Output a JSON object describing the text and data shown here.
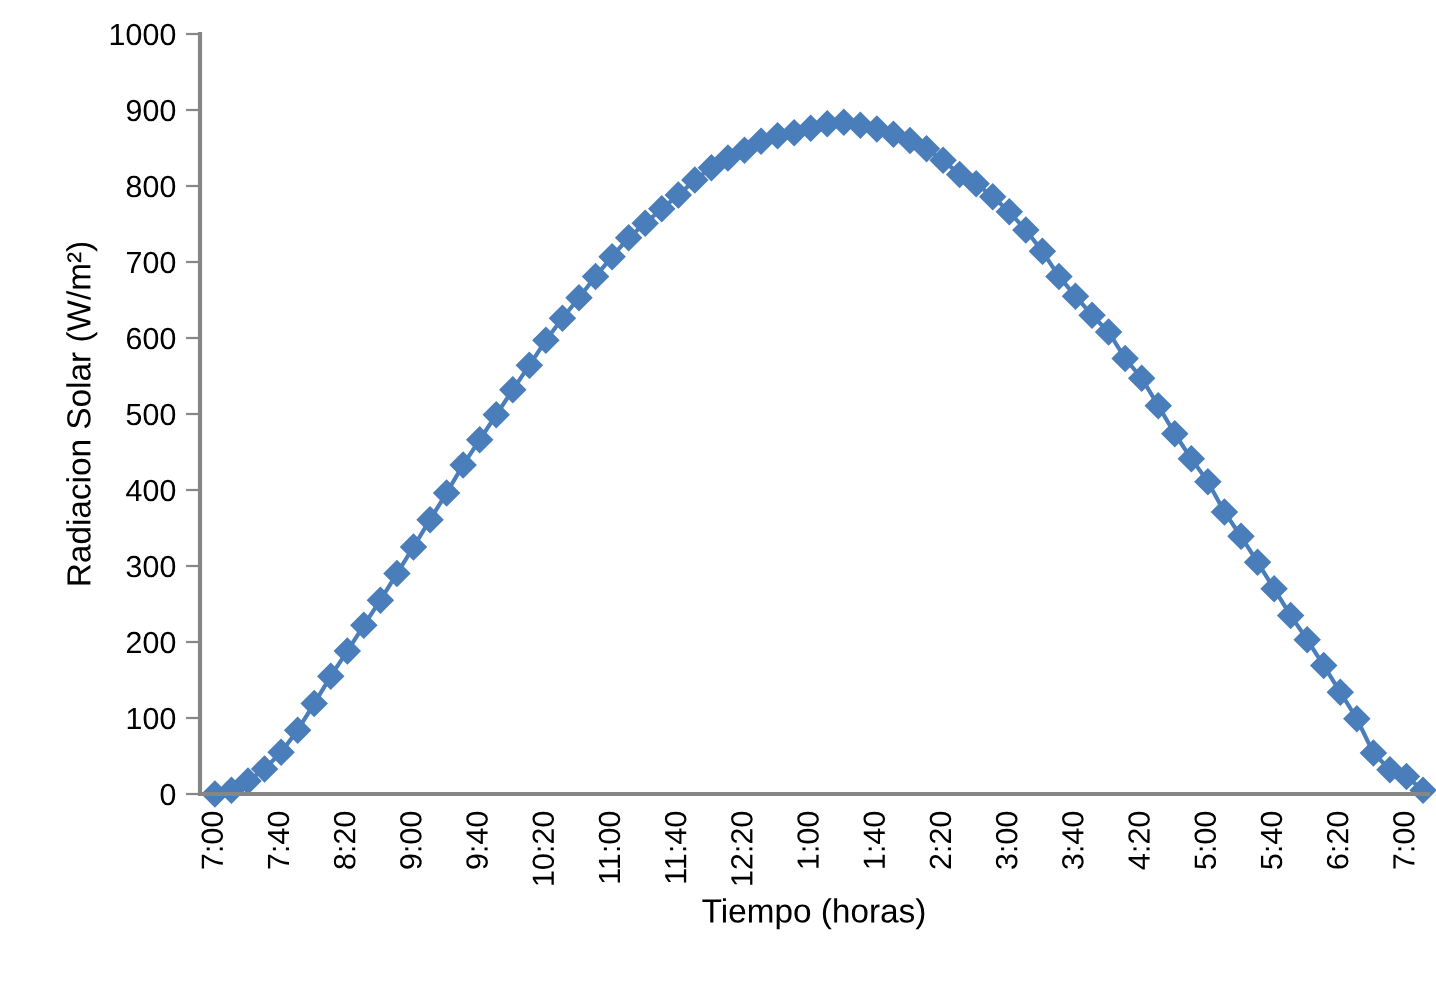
{
  "chart_data": {
    "type": "line",
    "xlabel": "Tiempo (horas)",
    "ylabel": "Radiacion Solar (W/m²)",
    "categories": [
      "7:00",
      null,
      null,
      null,
      "7:40",
      null,
      null,
      null,
      "8:20",
      null,
      null,
      null,
      "9:00",
      null,
      null,
      null,
      "9:40",
      null,
      null,
      null,
      "10:20",
      null,
      null,
      null,
      "11:00",
      null,
      null,
      null,
      "11:40",
      null,
      null,
      null,
      "12:20",
      null,
      null,
      null,
      "1:00",
      null,
      null,
      null,
      "1:40",
      null,
      null,
      null,
      "2:20",
      null,
      null,
      null,
      "3:00",
      null,
      null,
      null,
      "3:40",
      null,
      null,
      null,
      "4:20",
      null,
      null,
      null,
      "5:00",
      null,
      null,
      null,
      "5:40",
      null,
      null,
      null,
      "6:20",
      null,
      null,
      null,
      "7:00",
      null
    ],
    "series": [
      {
        "color": "#4a7ebb",
        "values": [
          0,
          5,
          17,
          33,
          55,
          84,
          119,
          155,
          188,
          222,
          255,
          290,
          325,
          361,
          396,
          433,
          466,
          499,
          532,
          564,
          597,
          626,
          653,
          681,
          707,
          732,
          751,
          770,
          788,
          808,
          824,
          837,
          847,
          859,
          866,
          870,
          876,
          882,
          884,
          880,
          875,
          868,
          860,
          849,
          834,
          815,
          803,
          786,
          766,
          742,
          714,
          681,
          655,
          630,
          608,
          573,
          547,
          511,
          474,
          441,
          411,
          371,
          339,
          305,
          270,
          235,
          203,
          169,
          134,
          99,
          54,
          32,
          23,
          5
        ]
      }
    ],
    "ylim": [
      0,
      1000
    ],
    "yticks": [
      0,
      100,
      200,
      300,
      400,
      500,
      600,
      700,
      800,
      900,
      1000
    ],
    "marker": "diamond",
    "line_style": "solid",
    "grid": false,
    "legend": false
  }
}
